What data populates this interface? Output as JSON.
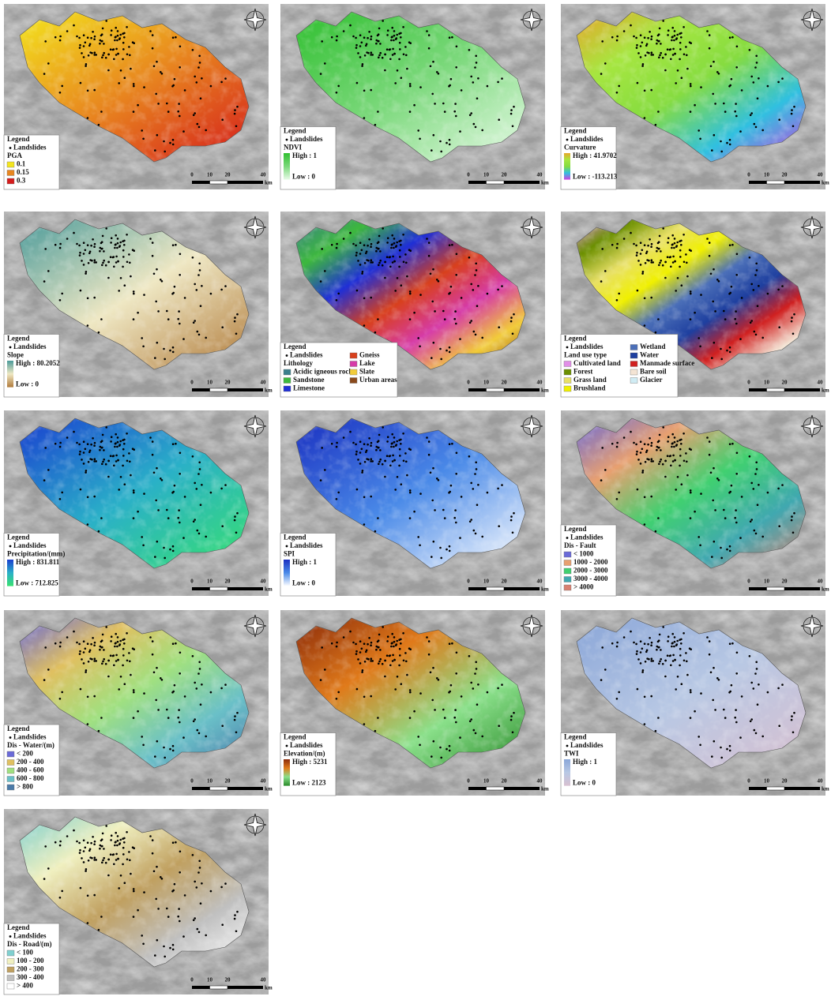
{
  "common": {
    "legend_heading": "Legend",
    "landslides": "Landslides",
    "scale_labels": [
      "0",
      "10",
      "20",
      "40"
    ],
    "scale_unit": "km"
  },
  "panels": [
    {
      "title": "PGA",
      "items": [
        {
          "label": "0.1",
          "color": "#f3e51e"
        },
        {
          "label": "0.15",
          "color": "#e8861f"
        },
        {
          "label": "0.3",
          "color": "#d41c1c"
        }
      ]
    },
    {
      "title": "NDVI",
      "high": "High : 1",
      "low": "Low : 0",
      "colors": [
        "#2fbf2f",
        "#7ad87a",
        "#e8fbe8"
      ]
    },
    {
      "title": "Curvature",
      "high": "High : 41.9702",
      "low": "Low : -113.213",
      "colors": [
        "#e8a62a",
        "#a6e640",
        "#86dc40",
        "#30c0e0",
        "#d040e0"
      ]
    },
    {
      "title": "Slope",
      "high": "High : 80.2052",
      "low": "Low : 0",
      "colors": [
        "#4a9a9a",
        "#efe8c4",
        "#b07a3a"
      ]
    },
    {
      "title": "Lithology",
      "items": [
        {
          "label": "Acidic igneous rock",
          "color": "#3a7f8c"
        },
        {
          "label": "Sandstone",
          "color": "#3db83d"
        },
        {
          "label": "Limestone",
          "color": "#1f2fd6"
        }
      ],
      "items_right": [
        {
          "label": "Gneiss",
          "color": "#d8401c"
        },
        {
          "label": "Lake",
          "color": "#d63ba8"
        },
        {
          "label": "Slate",
          "color": "#f2cc3a"
        },
        {
          "label": "Urban areas",
          "color": "#8a4a1c"
        }
      ]
    },
    {
      "title": "Land use type",
      "items": [
        {
          "label": "Cultivated land",
          "color": "#e28ee8"
        },
        {
          "label": "Forest",
          "color": "#6b8f00"
        },
        {
          "label": "Grass land",
          "color": "#e8e066"
        },
        {
          "label": "Brushland",
          "color": "#f0f000"
        }
      ],
      "items_right": [
        {
          "label": "Wetland",
          "color": "#4b6fb8"
        },
        {
          "label": "Water",
          "color": "#1e3f9f"
        },
        {
          "label": "Manmade surface",
          "color": "#d02020"
        },
        {
          "label": "Bare soil",
          "color": "#f4e4d4"
        },
        {
          "label": "Glacier",
          "color": "#d0ecf4"
        }
      ]
    },
    {
      "title": "Precipitation/(mm)",
      "high": "High : 831.811",
      "low": "Low : 712.825",
      "colors": [
        "#1a3fd0",
        "#2ab0c8",
        "#38e070"
      ]
    },
    {
      "title": "SPI",
      "high": "High : 1",
      "low": "Low : 0",
      "colors": [
        "#1a2fc0",
        "#4a8ae8",
        "#ffffff"
      ]
    },
    {
      "title": "Dis - Fault",
      "items": [
        {
          "label": "< 1000",
          "color": "#6a6ad8"
        },
        {
          "label": "1000 - 2000",
          "color": "#e8a070"
        },
        {
          "label": "2000 - 3000",
          "color": "#40d070"
        },
        {
          "label": "3000 - 4000",
          "color": "#40a8b0"
        },
        {
          "label": "> 4000",
          "color": "#d88070"
        }
      ]
    },
    {
      "title": "Dis - Water/(m)",
      "items": [
        {
          "label": "< 200",
          "color": "#6a6ad8"
        },
        {
          "label": "200 - 400",
          "color": "#e0c060"
        },
        {
          "label": "400 - 600",
          "color": "#a0e080"
        },
        {
          "label": "600 - 800",
          "color": "#6ac0c8"
        },
        {
          "label": "> 800",
          "color": "#4a7aa8"
        }
      ]
    },
    {
      "title": "Elevation/(m)",
      "high": "High : 5231",
      "low": "Low : 2123",
      "colors": [
        "#8a2a0a",
        "#e07a1a",
        "#8ae08a",
        "#2a8a2a"
      ]
    },
    {
      "title": "TWI",
      "high": "High : 1",
      "low": "Low : 0",
      "colors": [
        "#8aa6d8",
        "#b8c8e4",
        "#d8c0d0"
      ]
    },
    {
      "title": "Dis - Road/(m)",
      "items": [
        {
          "label": "< 100",
          "color": "#80d0d0"
        },
        {
          "label": "100 - 200",
          "color": "#f0f0c0"
        },
        {
          "label": "200 - 300",
          "color": "#c0a060"
        },
        {
          "label": "300 - 400",
          "color": "#c0c0c0"
        },
        {
          "label": "> 400",
          "color": "#ffffff"
        }
      ]
    }
  ]
}
